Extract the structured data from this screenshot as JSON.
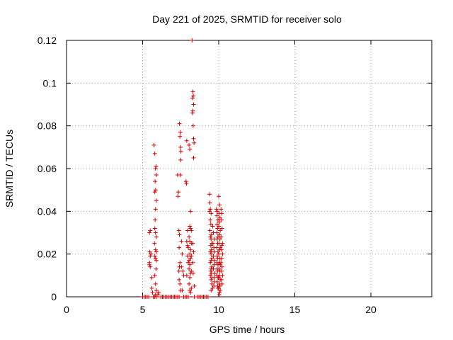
{
  "chart_data": {
    "type": "scatter",
    "title": "Day 221 of 2025, SRMTID for receiver solo",
    "xlabel": "GPS time / hours",
    "ylabel": "SRMTID / TECUs",
    "xlim": [
      0,
      24
    ],
    "ylim": [
      0,
      0.12
    ],
    "xticks": [
      0,
      5,
      10,
      15,
      20
    ],
    "xtick_labels": [
      "0",
      "5",
      "10",
      "15",
      "20"
    ],
    "yticks": [
      0,
      0.02,
      0.04,
      0.06,
      0.08,
      0.1,
      0.12
    ],
    "ytick_labels": [
      "0",
      "0.02",
      "0.04",
      "0.06",
      "0.08",
      "0.1",
      "0.12"
    ],
    "grid": true,
    "marker": "+",
    "series": [
      {
        "name": "SRMTID",
        "color": "#d40000",
        "points": [
          [
            5.0,
            0
          ],
          [
            5.1,
            0
          ],
          [
            5.2,
            0
          ],
          [
            5.3,
            0
          ],
          [
            5.4,
            0
          ],
          [
            5.7,
            0
          ],
          [
            5.8,
            0
          ],
          [
            5.9,
            0
          ],
          [
            6.2,
            0
          ],
          [
            6.3,
            0
          ],
          [
            6.4,
            0
          ],
          [
            6.5,
            0
          ],
          [
            6.6,
            0
          ],
          [
            6.7,
            0
          ],
          [
            6.8,
            0
          ],
          [
            6.9,
            0
          ],
          [
            7.0,
            0
          ],
          [
            7.1,
            0
          ],
          [
            7.2,
            0
          ],
          [
            7.3,
            0
          ],
          [
            7.4,
            0
          ],
          [
            7.7,
            0
          ],
          [
            7.8,
            0
          ],
          [
            7.9,
            0
          ],
          [
            8.0,
            0
          ],
          [
            8.4,
            0
          ],
          [
            8.6,
            0
          ],
          [
            8.7,
            0
          ],
          [
            8.8,
            0
          ],
          [
            8.9,
            0
          ],
          [
            9.0,
            0
          ],
          [
            9.1,
            0
          ],
          [
            9.2,
            0
          ],
          [
            9.3,
            0
          ],
          [
            5.45,
            0.03
          ],
          [
            5.5,
            0.031
          ],
          [
            5.47,
            0.021
          ],
          [
            5.5,
            0.019
          ],
          [
            5.45,
            0.016
          ],
          [
            5.5,
            0.014
          ],
          [
            5.55,
            0.02
          ],
          [
            5.6,
            0.009
          ],
          [
            5.6,
            0.004
          ],
          [
            5.65,
            0.002
          ],
          [
            5.45,
            0.015
          ],
          [
            5.75,
            0.071
          ],
          [
            5.8,
            0.067
          ],
          [
            5.85,
            0.06
          ],
          [
            5.88,
            0.061
          ],
          [
            5.9,
            0.057
          ],
          [
            5.82,
            0.054
          ],
          [
            5.85,
            0.05
          ],
          [
            5.8,
            0.049
          ],
          [
            5.9,
            0.045
          ],
          [
            5.85,
            0.041
          ],
          [
            5.82,
            0.036
          ],
          [
            5.8,
            0.032
          ],
          [
            5.85,
            0.03
          ],
          [
            5.9,
            0.028
          ],
          [
            5.78,
            0.025
          ],
          [
            5.85,
            0.022
          ],
          [
            5.9,
            0.021
          ],
          [
            5.8,
            0.019
          ],
          [
            5.85,
            0.018
          ],
          [
            5.9,
            0.017
          ],
          [
            5.88,
            0.013
          ],
          [
            5.8,
            0.01
          ],
          [
            5.85,
            0.006
          ],
          [
            5.9,
            0.003
          ],
          [
            5.85,
            0.001
          ],
          [
            6.0,
            0.001
          ],
          [
            6.05,
            0.002
          ],
          [
            7.3,
            0.057
          ],
          [
            7.35,
            0.049
          ],
          [
            7.32,
            0.047
          ],
          [
            7.38,
            0.031
          ],
          [
            7.42,
            0.029
          ],
          [
            7.4,
            0.023
          ],
          [
            7.45,
            0.016
          ],
          [
            7.42,
            0.014
          ],
          [
            7.38,
            0.012
          ],
          [
            7.45,
            0.006
          ],
          [
            7.5,
            0.003
          ],
          [
            7.4,
            0.008
          ],
          [
            7.42,
            0.081
          ],
          [
            7.48,
            0.077
          ],
          [
            7.45,
            0.075
          ],
          [
            7.5,
            0.07
          ],
          [
            7.52,
            0.068
          ],
          [
            7.5,
            0.064
          ],
          [
            7.48,
            0.057
          ],
          [
            7.55,
            0.026
          ],
          [
            7.6,
            0.02
          ],
          [
            7.65,
            0.012
          ],
          [
            7.7,
            0.01
          ],
          [
            7.6,
            0.003
          ],
          [
            7.55,
            0.014
          ],
          [
            7.9,
            0.073
          ],
          [
            7.85,
            0.054
          ],
          [
            7.88,
            0.053
          ],
          [
            7.95,
            0.031
          ],
          [
            7.9,
            0.026
          ],
          [
            8.0,
            0.023
          ],
          [
            7.95,
            0.019
          ],
          [
            8.0,
            0.016
          ],
          [
            8.05,
            0.013
          ],
          [
            7.9,
            0.01
          ],
          [
            8.05,
            0.006
          ],
          [
            8.1,
            0.003
          ],
          [
            7.95,
            0.024
          ],
          [
            8.05,
            0.071
          ],
          [
            8.1,
            0.069
          ],
          [
            8.15,
            0.04
          ],
          [
            8.1,
            0.033
          ],
          [
            8.15,
            0.032
          ],
          [
            8.2,
            0.031
          ],
          [
            8.05,
            0.028
          ],
          [
            8.1,
            0.026
          ],
          [
            8.2,
            0.025
          ],
          [
            8.15,
            0.022
          ],
          [
            8.1,
            0.02
          ],
          [
            8.2,
            0.019
          ],
          [
            8.15,
            0.018
          ],
          [
            8.05,
            0.017
          ],
          [
            8.1,
            0.015
          ],
          [
            8.2,
            0.012
          ],
          [
            8.15,
            0.011
          ],
          [
            8.1,
            0.009
          ],
          [
            8.2,
            0.004
          ],
          [
            8.15,
            0.002
          ],
          [
            8.25,
            0.12
          ],
          [
            8.3,
            0.096
          ],
          [
            8.33,
            0.094
          ],
          [
            8.28,
            0.093
          ],
          [
            8.35,
            0.09
          ],
          [
            8.3,
            0.087
          ],
          [
            8.28,
            0.086
          ],
          [
            8.32,
            0.08
          ],
          [
            8.35,
            0.074
          ],
          [
            8.38,
            0.072
          ],
          [
            8.35,
            0.065
          ],
          [
            8.3,
            0.025
          ],
          [
            8.35,
            0.021
          ],
          [
            8.3,
            0.016
          ],
          [
            8.32,
            0.011
          ],
          [
            8.4,
            0.005
          ],
          [
            9.4,
            0.048
          ],
          [
            9.42,
            0.044
          ],
          [
            9.45,
            0.041
          ],
          [
            9.4,
            0.04
          ],
          [
            9.5,
            0.039
          ],
          [
            9.45,
            0.036
          ],
          [
            9.48,
            0.034
          ],
          [
            9.42,
            0.031
          ],
          [
            9.5,
            0.029
          ],
          [
            9.45,
            0.028
          ],
          [
            9.5,
            0.027
          ],
          [
            9.55,
            0.025
          ],
          [
            9.48,
            0.024
          ],
          [
            9.52,
            0.022
          ],
          [
            9.45,
            0.021
          ],
          [
            9.5,
            0.02
          ],
          [
            9.55,
            0.018
          ],
          [
            9.5,
            0.017
          ],
          [
            9.45,
            0.016
          ],
          [
            9.55,
            0.014
          ],
          [
            9.5,
            0.013
          ],
          [
            9.48,
            0.012
          ],
          [
            9.52,
            0.011
          ],
          [
            9.45,
            0.01
          ],
          [
            9.55,
            0.009
          ],
          [
            9.5,
            0.008
          ],
          [
            9.55,
            0.006
          ],
          [
            9.6,
            0.004
          ],
          [
            9.5,
            0.003
          ],
          [
            9.6,
            0.033
          ],
          [
            9.65,
            0.03
          ],
          [
            9.7,
            0.027
          ],
          [
            9.62,
            0.025
          ],
          [
            9.68,
            0.023
          ],
          [
            9.7,
            0.021
          ],
          [
            9.65,
            0.019
          ],
          [
            9.72,
            0.017
          ],
          [
            9.7,
            0.015
          ],
          [
            9.65,
            0.013
          ],
          [
            9.75,
            0.011
          ],
          [
            9.7,
            0.009
          ],
          [
            9.72,
            0.007
          ],
          [
            9.68,
            0.005
          ],
          [
            9.85,
            0.041
          ],
          [
            9.9,
            0.04
          ],
          [
            9.88,
            0.038
          ],
          [
            9.95,
            0.036
          ],
          [
            9.9,
            0.034
          ],
          [
            9.92,
            0.032
          ],
          [
            9.88,
            0.03
          ],
          [
            9.95,
            0.028
          ],
          [
            9.9,
            0.027
          ],
          [
            9.93,
            0.025
          ],
          [
            9.87,
            0.023
          ],
          [
            9.95,
            0.021
          ],
          [
            9.9,
            0.019
          ],
          [
            9.92,
            0.018
          ],
          [
            9.88,
            0.016
          ],
          [
            9.95,
            0.015
          ],
          [
            9.9,
            0.013
          ],
          [
            9.92,
            0.012
          ],
          [
            9.88,
            0.01
          ],
          [
            9.95,
            0.009
          ],
          [
            9.9,
            0.007
          ],
          [
            9.92,
            0.005
          ],
          [
            9.95,
            0.004
          ],
          [
            10.0,
            0.047
          ],
          [
            10.05,
            0.043
          ],
          [
            10.02,
            0.039
          ],
          [
            10.08,
            0.037
          ],
          [
            10.05,
            0.035
          ],
          [
            10.0,
            0.033
          ],
          [
            10.1,
            0.031
          ],
          [
            10.05,
            0.029
          ],
          [
            10.08,
            0.027
          ],
          [
            10.02,
            0.025
          ],
          [
            10.1,
            0.023
          ],
          [
            10.05,
            0.022
          ],
          [
            10.0,
            0.02
          ],
          [
            10.08,
            0.018
          ],
          [
            10.05,
            0.016
          ],
          [
            10.1,
            0.015
          ],
          [
            10.02,
            0.013
          ],
          [
            10.08,
            0.012
          ],
          [
            10.05,
            0.01
          ],
          [
            10.0,
            0.009
          ],
          [
            10.1,
            0.008
          ],
          [
            10.05,
            0.006
          ],
          [
            10.08,
            0.005
          ],
          [
            10.0,
            0.004
          ],
          [
            10.1,
            0.003
          ],
          [
            10.05,
            0.002
          ],
          [
            10.03,
            0.001
          ],
          [
            10.15,
            0.041
          ],
          [
            10.2,
            0.039
          ],
          [
            10.18,
            0.036
          ],
          [
            10.22,
            0.032
          ],
          [
            10.15,
            0.028
          ],
          [
            10.25,
            0.025
          ],
          [
            10.2,
            0.024
          ],
          [
            10.18,
            0.022
          ],
          [
            10.25,
            0.02
          ],
          [
            10.2,
            0.018
          ],
          [
            10.15,
            0.016
          ],
          [
            10.22,
            0.014
          ],
          [
            10.2,
            0.012
          ],
          [
            10.25,
            0.01
          ],
          [
            10.18,
            0.008
          ],
          [
            10.22,
            0.006
          ]
        ]
      }
    ]
  }
}
